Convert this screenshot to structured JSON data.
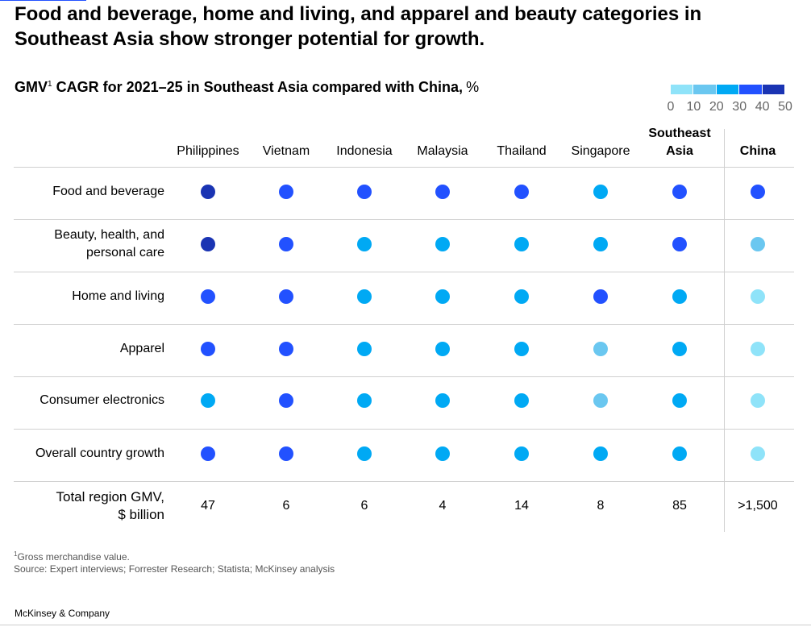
{
  "chart_data": {
    "type": "dot_matrix",
    "title": "Food and beverage, home and living, and apparel and beauty categories in Southeast Asia show stronger potential for growth.",
    "subtitle": "GMV",
    "subtitle_marker": "1",
    "subtitle_rest": "CAGR for 2021–25 in Southeast Asia compared with China,",
    "unit": "%",
    "legend_ticks": [
      0,
      10,
      20,
      30,
      40,
      50
    ],
    "legend_colors": [
      "#8fe3f9",
      "#6ac7f0",
      "#00a9f4",
      "#2251ff",
      "#1a34b3"
    ],
    "columns": [
      "Philippines",
      "Vietnam",
      "Indonesia",
      "Malaysia",
      "Thailand",
      "Singapore",
      "Southeast Asia",
      "China"
    ],
    "bold_columns": [
      "Southeast Asia",
      "China"
    ],
    "rows": [
      "Food and beverage",
      "Beauty, health, and personal care",
      "Home and living",
      "Apparel",
      "Consumer electronics",
      "Overall country growth"
    ],
    "values": [
      [
        45,
        35,
        35,
        35,
        35,
        25,
        35,
        35
      ],
      [
        45,
        35,
        25,
        25,
        25,
        25,
        35,
        15
      ],
      [
        35,
        35,
        25,
        25,
        25,
        35,
        25,
        5
      ],
      [
        35,
        35,
        25,
        25,
        25,
        15,
        25,
        5
      ],
      [
        25,
        35,
        25,
        25,
        25,
        15,
        25,
        5
      ],
      [
        35,
        35,
        25,
        25,
        25,
        25,
        25,
        5
      ]
    ],
    "gmv_label": [
      "Total region GMV,",
      "$ billion"
    ],
    "gmv": [
      47,
      6,
      6,
      4,
      14,
      8,
      85,
      ">1,500"
    ],
    "footnote_marker": "1",
    "footnote": "Gross merchandise value.",
    "source": "Source: Expert interviews; Forrester Research; Statista; McKinsey analysis",
    "brand": "McKinsey & Company"
  }
}
